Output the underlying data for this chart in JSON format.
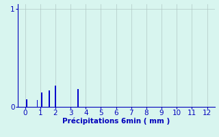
{
  "title": "",
  "xlabel": "Précipitations 6min ( mm )",
  "ylabel": "",
  "xlim": [
    -0.5,
    12.5
  ],
  "ylim": [
    0,
    1.05
  ],
  "yticks": [
    0,
    1
  ],
  "xticks": [
    0,
    1,
    2,
    3,
    4,
    5,
    6,
    7,
    8,
    9,
    10,
    11,
    12
  ],
  "bar_positions": [
    0.1,
    0.8,
    1.1,
    1.6,
    2.0,
    3.5
  ],
  "bar_heights": [
    0.08,
    0.07,
    0.15,
    0.17,
    0.22,
    0.18
  ],
  "bar_color": "#0000cc",
  "bar_width": 0.08,
  "background_color": "#d8f5ef",
  "grid_color": "#b0c8c4",
  "axis_color": "#0000bb",
  "tick_color": "#0000bb",
  "label_color": "#0000bb",
  "label_fontsize": 7.5
}
